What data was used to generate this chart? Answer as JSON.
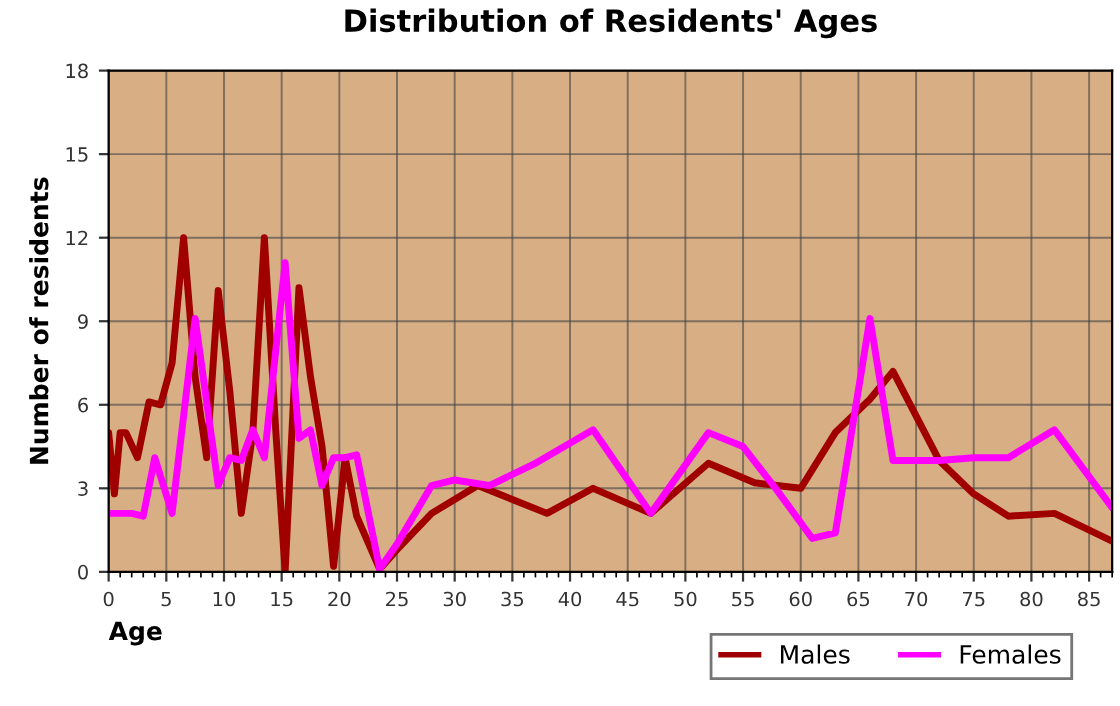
{
  "chart_data": {
    "type": "line",
    "title": "Distribution of Residents' Ages",
    "xlabel": "Age",
    "ylabel": "Number of residents",
    "xlim": [
      0,
      87
    ],
    "xticks": [
      0,
      5,
      10,
      15,
      20,
      25,
      30,
      35,
      40,
      45,
      50,
      55,
      60,
      65,
      70,
      75,
      80,
      85
    ],
    "ylim": [
      0,
      18
    ],
    "yticks": [
      0,
      3,
      6,
      9,
      12,
      15,
      18
    ],
    "grid": true,
    "legend": "bottom",
    "line_style": "solid",
    "marker": "none",
    "series": [
      {
        "name": "Males",
        "color": "#a00000",
        "x": [
          0,
          0.5,
          1,
          1.5,
          2.5,
          3.5,
          4.5,
          5.5,
          6.5,
          7.5,
          8.5,
          9.5,
          10.5,
          11.5,
          12.5,
          13.5,
          14.5,
          15.3,
          16.5,
          17.5,
          18.5,
          19.5,
          20.5,
          21.5,
          23.5,
          25,
          28,
          32,
          35,
          38,
          42,
          47,
          52,
          56,
          60,
          63,
          66,
          68,
          72,
          75,
          78,
          82,
          87
        ],
        "values": [
          5,
          2.8,
          5,
          5,
          4.1,
          6.1,
          6.0,
          7.5,
          12,
          7,
          4.1,
          10.1,
          6.5,
          2.1,
          5,
          12,
          5,
          0,
          10.2,
          7,
          4.5,
          0.2,
          4.1,
          2,
          0.1,
          0.8,
          2.1,
          3.1,
          2.6,
          2.1,
          3.0,
          2.1,
          3.9,
          3.2,
          3.0,
          5.0,
          6.2,
          7.2,
          4.0,
          2.8,
          2.0,
          2.1,
          1.1
        ]
      },
      {
        "name": "Females",
        "color": "#ff00ff",
        "x": [
          0,
          2,
          3,
          4,
          5.5,
          7.5,
          9.5,
          10.5,
          11.5,
          12.5,
          13.5,
          15.3,
          16.5,
          17.5,
          18.5,
          19.5,
          20.5,
          21.5,
          23.5,
          25,
          28,
          30,
          33,
          37,
          42,
          47,
          52,
          55,
          58,
          61,
          63,
          66,
          68,
          72,
          75,
          78,
          82,
          87
        ],
        "values": [
          2.1,
          2.1,
          2,
          4.1,
          2.1,
          9.1,
          3.1,
          4.1,
          4,
          5.1,
          4.1,
          11.1,
          4.8,
          5.1,
          3.1,
          4.1,
          4.1,
          4.2,
          0.1,
          1,
          3.1,
          3.3,
          3.1,
          3.9,
          5.1,
          2.1,
          5.0,
          4.5,
          2.9,
          1.2,
          1.4,
          9.1,
          4.0,
          4.0,
          4.1,
          4.1,
          5.1,
          2.3
        ]
      }
    ]
  }
}
